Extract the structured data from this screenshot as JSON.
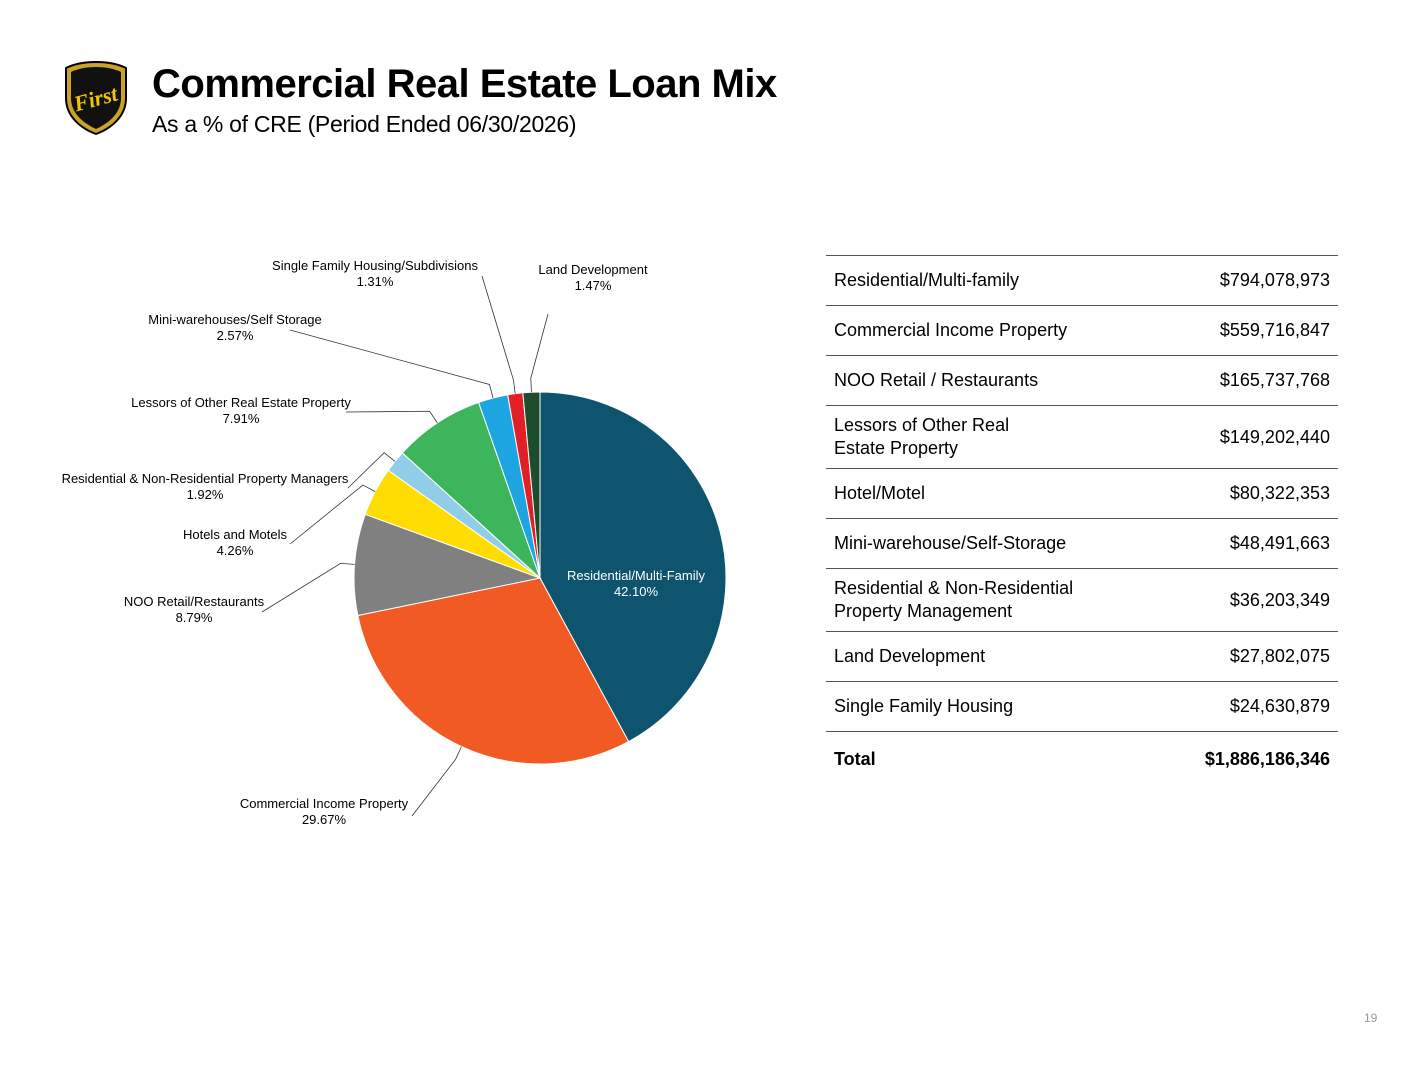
{
  "header": {
    "title": "Commercial Real Estate Loan Mix",
    "subtitle": "As a % of CRE (Period Ended 06/30/2026)",
    "logo_text": "First"
  },
  "chart_data": {
    "type": "pie",
    "start_angle_deg": 0,
    "direction": "clockwise",
    "slices": [
      {
        "name_lines": [
          "Residential/Multi-Family"
        ],
        "pct_label": "42.10%",
        "value": 42.1,
        "color": "#0e546f",
        "label_inside": true
      },
      {
        "name_lines": [
          "Commercial Income Property"
        ],
        "pct_label": "29.67%",
        "value": 29.67,
        "color": "#f15a22"
      },
      {
        "name_lines": [
          "NOO Retail/Restaurants"
        ],
        "pct_label": "8.79%",
        "value": 8.79,
        "color": "#808080"
      },
      {
        "name_lines": [
          "Hotels and Motels"
        ],
        "pct_label": "4.26%",
        "value": 4.26,
        "color": "#ffdd00"
      },
      {
        "name_lines": [
          "Residential & Non-Residential Property Managers"
        ],
        "pct_label": "1.92%",
        "value": 1.92,
        "color": "#92cde8"
      },
      {
        "name_lines": [
          "Lessors of Other Real Estate Property"
        ],
        "pct_label": "7.91%",
        "value": 7.91,
        "color": "#3cb55c"
      },
      {
        "name_lines": [
          "Mini-warehouses/Self Storage"
        ],
        "pct_label": "2.57%",
        "value": 2.57,
        "color": "#1ca5e0"
      },
      {
        "name_lines": [
          "Single Family Housing/Subdivisions"
        ],
        "pct_label": "1.31%",
        "value": 1.31,
        "color": "#e21f26"
      },
      {
        "name_lines": [
          "Land Development"
        ],
        "pct_label": "1.47%",
        "value": 1.47,
        "color": "#1c4e2e"
      }
    ]
  },
  "table": {
    "rows": [
      {
        "name": "Residential/Multi-family",
        "value": "$794,078,973"
      },
      {
        "name": "Commercial Income Property",
        "value": "$559,716,847"
      },
      {
        "name": "NOO Retail / Restaurants",
        "value": "$165,737,768"
      },
      {
        "name": "Lessors of Other Real\nEstate Property",
        "value": "$149,202,440"
      },
      {
        "name": "Hotel/Motel",
        "value": "$80,322,353"
      },
      {
        "name": "Mini-warehouse/Self-Storage",
        "value": "$48,491,663"
      },
      {
        "name": "Residential & Non-Residential\nProperty Management",
        "value": "$36,203,349"
      },
      {
        "name": "Land Development",
        "value": "$27,802,075"
      },
      {
        "name": "Single Family Housing",
        "value": "$24,630,879"
      }
    ],
    "total": {
      "name": "Total",
      "value": "$1,886,186,346"
    }
  },
  "footer": {
    "page_number": "19"
  }
}
